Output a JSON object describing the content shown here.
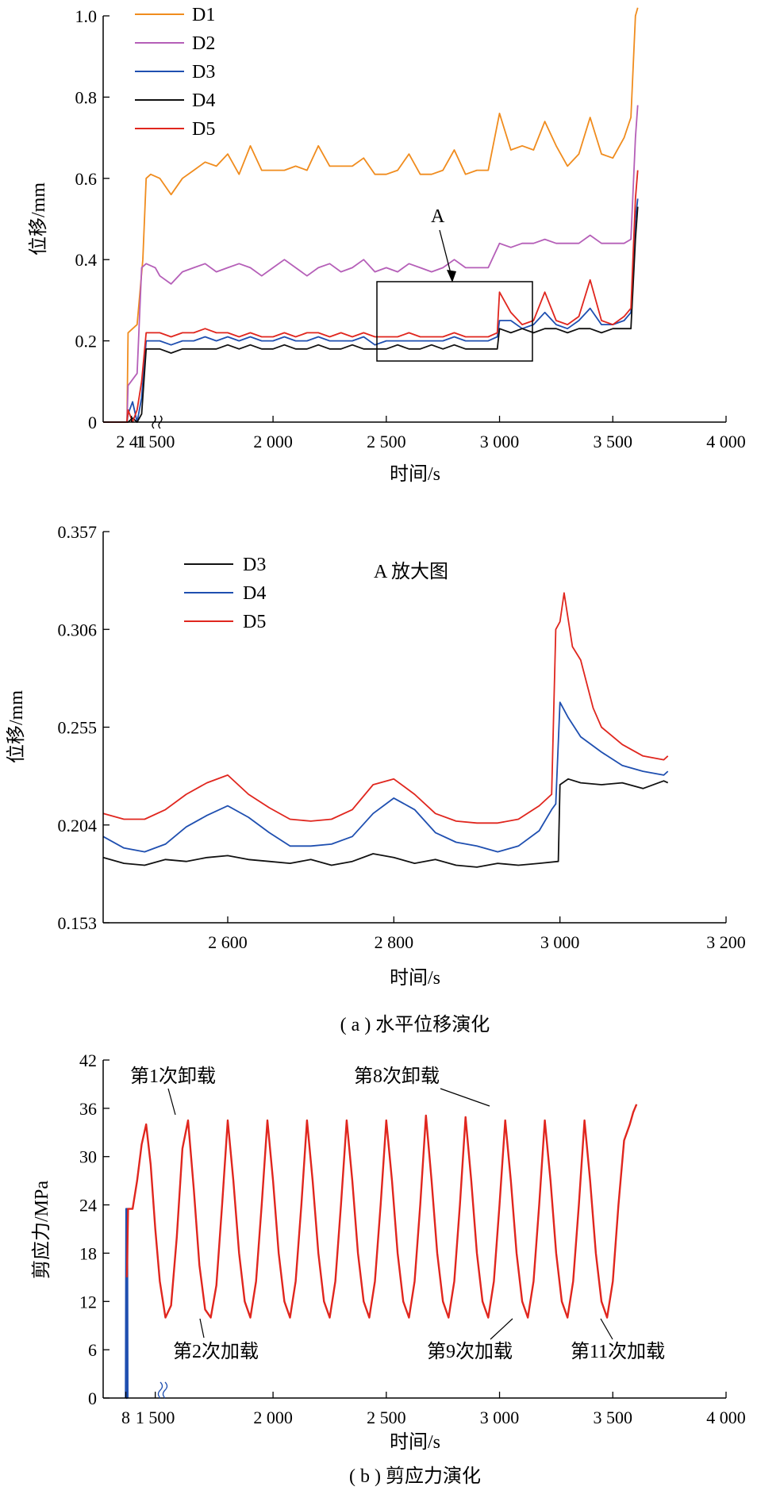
{
  "chart_data": [
    {
      "type": "line",
      "xlabel": "时间/s",
      "ylabel": "位移/mm",
      "xlim": [
        1250,
        4000
      ],
      "ylim": [
        0,
        1.0
      ],
      "x_tick_labels": [
        "2 41",
        "1 500",
        "2 000",
        "2 500",
        "3 000",
        "3 500",
        "4 000"
      ],
      "y_tick_labels": [
        "0",
        "0.2",
        "0.4",
        "0.6",
        "0.8",
        "1.0"
      ],
      "grid": false,
      "legend_position": "top-left",
      "annotation": "A",
      "colors": {
        "D1": "#f08c1e",
        "D2": "#b55fb8",
        "D3": "#1f4fb0",
        "D4": "#111111",
        "D5": "#e0261e"
      },
      "series": [
        {
          "name": "D1",
          "x": [
            1250,
            1300,
            1355,
            1360,
            1400,
            1425,
            1440,
            1460,
            1500,
            1550,
            1600,
            1650,
            1700,
            1750,
            1800,
            1850,
            1900,
            1950,
            2000,
            2050,
            2100,
            2150,
            2200,
            2250,
            2300,
            2350,
            2400,
            2450,
            2500,
            2550,
            2600,
            2650,
            2700,
            2750,
            2800,
            2850,
            2900,
            2950,
            3000,
            3050,
            3100,
            3150,
            3200,
            3250,
            3300,
            3350,
            3400,
            3450,
            3500,
            3550,
            3580,
            3600,
            3610
          ],
          "y": [
            0.0,
            0.0,
            0.0,
            0.22,
            0.24,
            0.4,
            0.6,
            0.61,
            0.6,
            0.56,
            0.6,
            0.62,
            0.64,
            0.63,
            0.66,
            0.61,
            0.68,
            0.62,
            0.62,
            0.62,
            0.63,
            0.62,
            0.68,
            0.63,
            0.63,
            0.63,
            0.65,
            0.61,
            0.61,
            0.62,
            0.66,
            0.61,
            0.61,
            0.62,
            0.67,
            0.61,
            0.62,
            0.62,
            0.76,
            0.67,
            0.68,
            0.67,
            0.74,
            0.68,
            0.63,
            0.66,
            0.75,
            0.66,
            0.65,
            0.7,
            0.75,
            1.0,
            1.02
          ]
        },
        {
          "name": "D2",
          "x": [
            1250,
            1300,
            1355,
            1360,
            1400,
            1420,
            1440,
            1480,
            1500,
            1550,
            1600,
            1650,
            1700,
            1750,
            1800,
            1850,
            1900,
            1950,
            2000,
            2050,
            2100,
            2150,
            2200,
            2250,
            2300,
            2350,
            2400,
            2450,
            2500,
            2550,
            2600,
            2650,
            2700,
            2750,
            2800,
            2850,
            2900,
            2950,
            3000,
            3050,
            3100,
            3150,
            3200,
            3250,
            3300,
            3350,
            3400,
            3450,
            3500,
            3550,
            3580,
            3600,
            3610
          ],
          "y": [
            0.0,
            0.0,
            0.0,
            0.09,
            0.12,
            0.38,
            0.39,
            0.38,
            0.36,
            0.34,
            0.37,
            0.38,
            0.39,
            0.37,
            0.38,
            0.39,
            0.38,
            0.36,
            0.38,
            0.4,
            0.38,
            0.36,
            0.38,
            0.39,
            0.37,
            0.38,
            0.4,
            0.37,
            0.38,
            0.37,
            0.39,
            0.38,
            0.37,
            0.38,
            0.4,
            0.38,
            0.38,
            0.38,
            0.44,
            0.43,
            0.44,
            0.44,
            0.45,
            0.44,
            0.44,
            0.44,
            0.46,
            0.44,
            0.44,
            0.44,
            0.45,
            0.7,
            0.78
          ]
        },
        {
          "name": "D3",
          "x": [
            1250,
            1300,
            1355,
            1360,
            1380,
            1400,
            1420,
            1440,
            1500,
            1550,
            1600,
            1650,
            1700,
            1750,
            1800,
            1850,
            1900,
            1950,
            2000,
            2050,
            2100,
            2150,
            2200,
            2250,
            2300,
            2350,
            2400,
            2450,
            2500,
            2550,
            2600,
            2650,
            2700,
            2750,
            2800,
            2850,
            2900,
            2950,
            2990,
            3000,
            3050,
            3100,
            3150,
            3200,
            3250,
            3300,
            3350,
            3400,
            3450,
            3500,
            3550,
            3580,
            3600,
            3610
          ],
          "y": [
            0.0,
            0.0,
            0.0,
            0.02,
            0.05,
            0.0,
            0.06,
            0.2,
            0.2,
            0.19,
            0.2,
            0.2,
            0.21,
            0.2,
            0.21,
            0.2,
            0.21,
            0.2,
            0.2,
            0.21,
            0.2,
            0.2,
            0.21,
            0.2,
            0.2,
            0.2,
            0.21,
            0.19,
            0.2,
            0.2,
            0.2,
            0.2,
            0.2,
            0.2,
            0.21,
            0.2,
            0.2,
            0.2,
            0.21,
            0.25,
            0.25,
            0.23,
            0.24,
            0.27,
            0.24,
            0.23,
            0.25,
            0.28,
            0.24,
            0.24,
            0.25,
            0.27,
            0.5,
            0.55
          ]
        },
        {
          "name": "D4",
          "x": [
            1250,
            1300,
            1355,
            1360,
            1380,
            1400,
            1420,
            1440,
            1500,
            1550,
            1600,
            1650,
            1700,
            1750,
            1800,
            1850,
            1900,
            1950,
            2000,
            2050,
            2100,
            2150,
            2200,
            2250,
            2300,
            2350,
            2400,
            2450,
            2500,
            2550,
            2600,
            2650,
            2700,
            2750,
            2800,
            2850,
            2900,
            2950,
            2990,
            3000,
            3050,
            3100,
            3150,
            3200,
            3250,
            3300,
            3350,
            3400,
            3450,
            3500,
            3550,
            3580,
            3600,
            3610
          ],
          "y": [
            0.0,
            0.0,
            0.0,
            0.0,
            0.01,
            0.0,
            0.02,
            0.18,
            0.18,
            0.17,
            0.18,
            0.18,
            0.18,
            0.18,
            0.19,
            0.18,
            0.19,
            0.18,
            0.18,
            0.19,
            0.18,
            0.18,
            0.19,
            0.18,
            0.18,
            0.19,
            0.18,
            0.18,
            0.18,
            0.19,
            0.18,
            0.18,
            0.19,
            0.18,
            0.19,
            0.18,
            0.18,
            0.18,
            0.18,
            0.23,
            0.22,
            0.23,
            0.22,
            0.23,
            0.23,
            0.22,
            0.23,
            0.23,
            0.22,
            0.23,
            0.23,
            0.23,
            0.45,
            0.53
          ]
        },
        {
          "name": "D5",
          "x": [
            1250,
            1300,
            1355,
            1360,
            1380,
            1400,
            1420,
            1440,
            1500,
            1550,
            1600,
            1650,
            1700,
            1750,
            1800,
            1850,
            1900,
            1950,
            2000,
            2050,
            2100,
            2150,
            2200,
            2250,
            2300,
            2350,
            2400,
            2450,
            2500,
            2550,
            2600,
            2650,
            2700,
            2750,
            2800,
            2850,
            2900,
            2950,
            2990,
            3000,
            3050,
            3100,
            3150,
            3200,
            3250,
            3300,
            3350,
            3400,
            3450,
            3500,
            3550,
            3580,
            3600,
            3610
          ],
          "y": [
            0.0,
            0.0,
            0.0,
            0.03,
            0.0,
            0.03,
            0.1,
            0.22,
            0.22,
            0.21,
            0.22,
            0.22,
            0.23,
            0.22,
            0.22,
            0.21,
            0.22,
            0.21,
            0.21,
            0.22,
            0.21,
            0.22,
            0.22,
            0.21,
            0.22,
            0.21,
            0.22,
            0.21,
            0.21,
            0.21,
            0.22,
            0.21,
            0.21,
            0.21,
            0.22,
            0.21,
            0.21,
            0.21,
            0.22,
            0.32,
            0.27,
            0.24,
            0.25,
            0.32,
            0.25,
            0.24,
            0.26,
            0.35,
            0.25,
            0.24,
            0.26,
            0.28,
            0.55,
            0.62
          ]
        }
      ]
    },
    {
      "type": "line",
      "title": "A 放大图",
      "xlabel": "时间/s",
      "ylabel": "位移/mm",
      "xlim": [
        2450,
        3200
      ],
      "ylim": [
        0.153,
        0.357
      ],
      "x_tick_labels": [
        "2 600",
        "2 800",
        "3 000",
        "3 200"
      ],
      "y_tick_labels": [
        "0.153",
        "0.204",
        "0.255",
        "0.306",
        "0.357"
      ],
      "grid": false,
      "legend_position": "top-left",
      "colors": {
        "D3": "#111111",
        "D4": "#1f4fb0",
        "D5": "#e0261e"
      },
      "series": [
        {
          "name": "D3",
          "x": [
            2450,
            2475,
            2500,
            2525,
            2550,
            2575,
            2600,
            2625,
            2650,
            2675,
            2700,
            2725,
            2750,
            2775,
            2800,
            2825,
            2850,
            2875,
            2900,
            2925,
            2950,
            2975,
            2998,
            3000,
            3010,
            3025,
            3050,
            3075,
            3100,
            3125,
            3130
          ],
          "y": [
            0.187,
            0.184,
            0.183,
            0.186,
            0.185,
            0.187,
            0.188,
            0.186,
            0.185,
            0.184,
            0.186,
            0.183,
            0.185,
            0.189,
            0.187,
            0.184,
            0.186,
            0.183,
            0.182,
            0.184,
            0.183,
            0.184,
            0.185,
            0.225,
            0.228,
            0.226,
            0.225,
            0.226,
            0.223,
            0.227,
            0.226
          ]
        },
        {
          "name": "D4",
          "x": [
            2450,
            2475,
            2500,
            2525,
            2550,
            2575,
            2600,
            2625,
            2650,
            2675,
            2700,
            2725,
            2750,
            2775,
            2800,
            2825,
            2850,
            2875,
            2900,
            2925,
            2950,
            2975,
            2990,
            2995,
            3000,
            3010,
            3025,
            3050,
            3075,
            3100,
            3125,
            3130
          ],
          "y": [
            0.198,
            0.192,
            0.19,
            0.194,
            0.203,
            0.209,
            0.214,
            0.208,
            0.2,
            0.193,
            0.193,
            0.194,
            0.198,
            0.21,
            0.218,
            0.212,
            0.2,
            0.195,
            0.193,
            0.19,
            0.193,
            0.201,
            0.212,
            0.215,
            0.268,
            0.26,
            0.25,
            0.242,
            0.235,
            0.232,
            0.23,
            0.232
          ]
        },
        {
          "name": "D5",
          "x": [
            2450,
            2475,
            2500,
            2525,
            2550,
            2575,
            2600,
            2625,
            2650,
            2675,
            2700,
            2725,
            2750,
            2775,
            2800,
            2825,
            2850,
            2875,
            2900,
            2925,
            2950,
            2975,
            2990,
            2995,
            3000,
            3005,
            3015,
            3025,
            3040,
            3050,
            3075,
            3100,
            3125,
            3130
          ],
          "y": [
            0.21,
            0.207,
            0.207,
            0.212,
            0.22,
            0.226,
            0.23,
            0.22,
            0.213,
            0.207,
            0.206,
            0.207,
            0.212,
            0.225,
            0.228,
            0.22,
            0.21,
            0.206,
            0.205,
            0.205,
            0.207,
            0.214,
            0.22,
            0.306,
            0.31,
            0.325,
            0.297,
            0.29,
            0.265,
            0.255,
            0.246,
            0.24,
            0.238,
            0.24
          ]
        }
      ]
    },
    {
      "type": "line",
      "xlabel": "时间/s",
      "ylabel": "剪应力/MPa",
      "xlim": [
        1250,
        4000
      ],
      "ylim": [
        0,
        42
      ],
      "x_tick_labels": [
        "8",
        "1 500",
        "2 000",
        "2 500",
        "3 000",
        "3 500",
        "4 000"
      ],
      "y_tick_labels": [
        "0",
        "6",
        "12",
        "18",
        "24",
        "30",
        "36",
        "42"
      ],
      "grid": false,
      "annotations": [
        "第1次卸载",
        "第8次卸载",
        "第2次加载",
        "第9次加载",
        "第11次加载"
      ],
      "colors": {
        "loading": "#e0261e",
        "initial": "#1f4fb0"
      },
      "series": [
        {
          "x": [
            1350,
            1352,
            1354,
            1356,
            1358
          ],
          "y": [
            0,
            23.5,
            0,
            23.5,
            0
          ]
        },
        {
          "x": [
            1355,
            1360,
            1380,
            1400,
            1420,
            1440,
            1460,
            1480,
            1500,
            1525,
            1550,
            1575,
            1600,
            1625,
            1650,
            1675,
            1700,
            1725,
            1750,
            1775,
            1800,
            1825,
            1850,
            1875,
            1900,
            1925,
            1950,
            1975,
            2000,
            2025,
            2050,
            2075,
            2100,
            2125,
            2150,
            2175,
            2200,
            2225,
            2250,
            2275,
            2300,
            2325,
            2350,
            2375,
            2400,
            2425,
            2450,
            2475,
            2500,
            2525,
            2550,
            2575,
            2600,
            2625,
            2650,
            2675,
            2700,
            2725,
            2750,
            2775,
            2800,
            2825,
            2850,
            2875,
            2900,
            2925,
            2950,
            2975,
            3000,
            3025,
            3050,
            3075,
            3100,
            3125,
            3150,
            3175,
            3200,
            3225,
            3250,
            3275,
            3300,
            3325,
            3350,
            3375,
            3400,
            3425,
            3450,
            3475,
            3500,
            3525,
            3550,
            3575,
            3590,
            3605
          ],
          "y": [
            15,
            23.5,
            23.5,
            27,
            31.5,
            34,
            29,
            21,
            14.5,
            10,
            11.5,
            20,
            31,
            34.5,
            26,
            16.5,
            11,
            10,
            14,
            24,
            34.5,
            27,
            18,
            12,
            10,
            14.5,
            24,
            34.5,
            27,
            18,
            12,
            10,
            14.5,
            24,
            34.5,
            27,
            18,
            12,
            10,
            14.5,
            24,
            34.5,
            27,
            18,
            12,
            10,
            14.5,
            24,
            34.5,
            27,
            18,
            12,
            10,
            14.5,
            24,
            35.1,
            27,
            18,
            12,
            10,
            14.5,
            24,
            34.9,
            27,
            18,
            12,
            10,
            14.5,
            24,
            34.5,
            27,
            18,
            12,
            10,
            14.5,
            24,
            34.5,
            27,
            18,
            12,
            10,
            14.5,
            24,
            34.5,
            27,
            18,
            12,
            10,
            14.5,
            24,
            32,
            34,
            35.5,
            36.5
          ]
        }
      ]
    }
  ],
  "captions": [
    "( a ) 水平位移演化",
    "( b ) 剪应力演化"
  ]
}
